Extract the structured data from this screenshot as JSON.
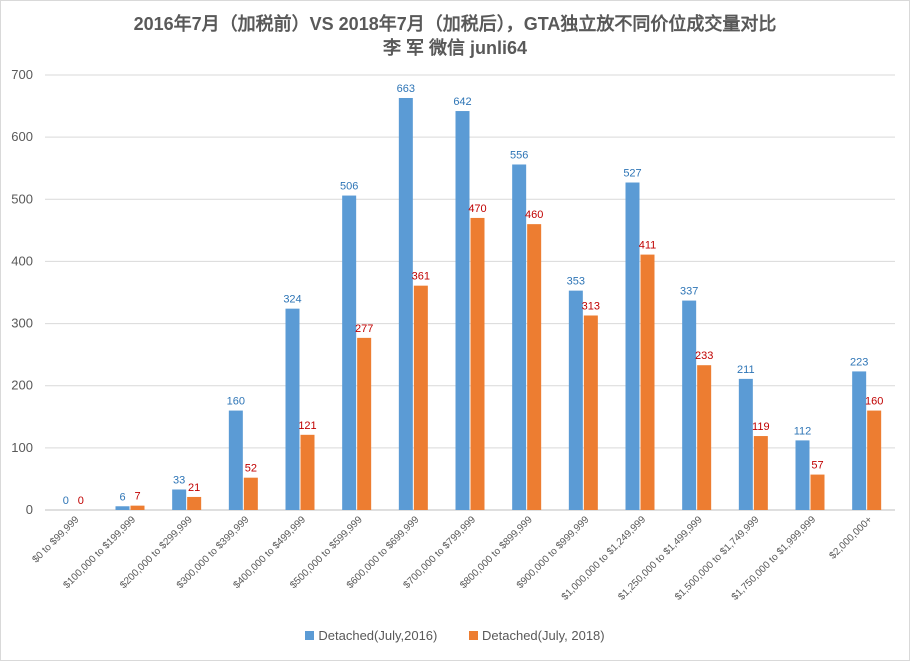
{
  "chart_data": {
    "type": "bar",
    "title": "2016年7月（加税前）VS 2018年7月（加税后），GTA独立放不同价位成交量对比",
    "subtitle": "李 军   微信 junli64",
    "categories": [
      "$0 to $99,999",
      "$100,000 to $199,999",
      "$200,000 to $299,999",
      "$300,000 to $399,999",
      "$400,000 to $499,999",
      "$500,000 to $599,999",
      "$600,000 to $699,999",
      "$700,000 to $799,999",
      "$800,000 to $899,999",
      "$900,000 to $999,999",
      "$1,000,000 to $1,249,999",
      "$1,250,000 to $1,499,999",
      "$1,500,000 to $1,749,999",
      "$1,750,000 to $1,999,999",
      "$2,000,000+"
    ],
    "series": [
      {
        "name": "Detached(July,2016)",
        "color": "#5b9bd5",
        "label_color": "#2e75b6",
        "values": [
          0,
          6,
          33,
          160,
          324,
          506,
          663,
          642,
          556,
          353,
          527,
          337,
          211,
          112,
          223
        ]
      },
      {
        "name": "Detached(July, 2018)",
        "color": "#ed7d31",
        "label_color": "#c00000",
        "values": [
          0,
          7,
          21,
          52,
          121,
          277,
          361,
          470,
          460,
          313,
          411,
          233,
          119,
          57,
          160
        ]
      }
    ],
    "ylim": [
      0,
      700
    ],
    "yticks": [
      0,
      100,
      200,
      300,
      400,
      500,
      600,
      700
    ],
    "grid": true,
    "legend_position": "bottom",
    "xlabel": "",
    "ylabel": ""
  }
}
